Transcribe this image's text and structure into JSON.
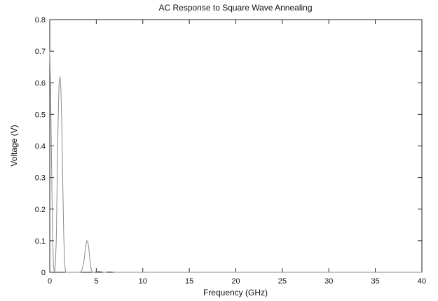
{
  "chart_data": {
    "type": "line",
    "title": "AC Response to Square Wave Annealing",
    "xlabel": "Frequency (GHz)",
    "ylabel": "Voltage (V)",
    "xlim": [
      0,
      40
    ],
    "ylim": [
      0,
      0.8
    ],
    "xticks": [
      0,
      5,
      10,
      15,
      20,
      25,
      30,
      35,
      40
    ],
    "yticks": [
      0,
      0.1,
      0.2,
      0.3,
      0.4,
      0.5,
      0.6,
      0.7,
      0.8
    ],
    "xtick_labels": [
      "0",
      "5",
      "10",
      "15",
      "20",
      "25",
      "30",
      "35",
      "40"
    ],
    "ytick_labels": [
      "0",
      "0.1",
      "0.2",
      "0.3",
      "0.4",
      "0.5",
      "0.6",
      "0.7",
      "0.8"
    ],
    "grid": false,
    "legend": "none",
    "line_color": "#8a8a8a",
    "series": [
      {
        "x": [
          0,
          0.1,
          0.2,
          0.3,
          0.4,
          0.5,
          0.6,
          0.7,
          0.8,
          0.9,
          1.0,
          1.1,
          1.2,
          1.3,
          1.4,
          1.5,
          1.6,
          1.7,
          1.8,
          1.9,
          2.0,
          2.2,
          2.5,
          3.0,
          3.3,
          3.5,
          3.7,
          3.8,
          3.9,
          4.0,
          4.1,
          4.2,
          4.3,
          4.4,
          4.5,
          4.6,
          4.8,
          5.0,
          5.2,
          5.5,
          5.8,
          6.0,
          6.3,
          6.7,
          7.0,
          8.0,
          10.0,
          15.0,
          20.0,
          25.0,
          30.0,
          35.0,
          40.0
        ],
        "y": [
          0.7,
          0.55,
          0.33,
          0.12,
          0.02,
          0.0,
          0.02,
          0.1,
          0.3,
          0.48,
          0.6,
          0.62,
          0.58,
          0.46,
          0.28,
          0.12,
          0.03,
          0.0,
          0.0,
          0.0,
          0.0,
          0.0,
          0.0,
          0.0,
          0.0,
          0.01,
          0.04,
          0.07,
          0.09,
          0.1,
          0.095,
          0.075,
          0.045,
          0.02,
          0.005,
          0.0,
          0.0,
          0.002,
          0.003,
          0.002,
          0.0,
          0.0,
          0.002,
          0.001,
          0.0,
          0.0,
          0.0,
          0.0,
          0.0,
          0.0,
          0.0,
          0.0,
          0.0
        ]
      }
    ]
  }
}
